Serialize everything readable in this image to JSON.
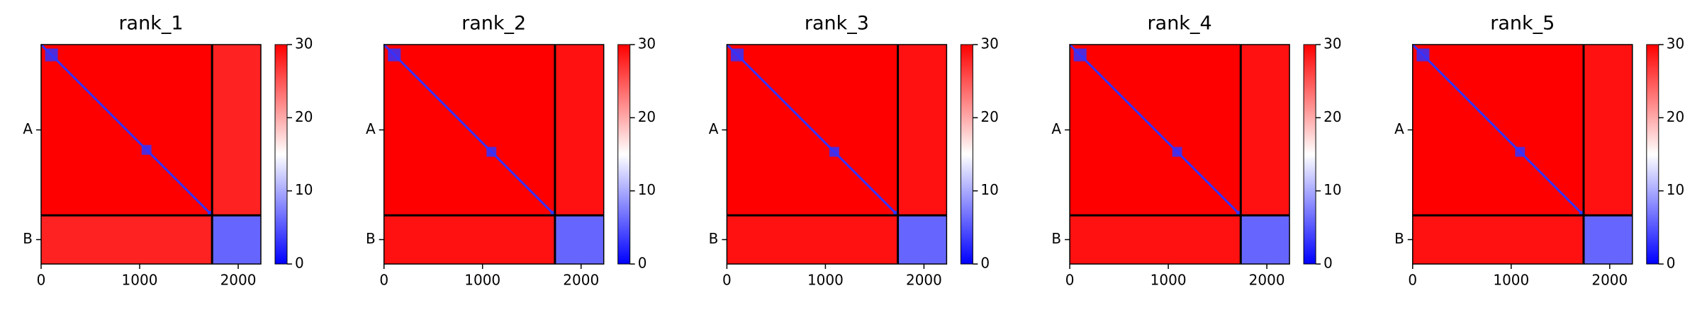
{
  "chart_data": [
    {
      "type": "heatmap",
      "title": "rank_1",
      "xlim": [
        0,
        2230
      ],
      "ylim": [
        2230,
        0
      ],
      "xticks": [
        0,
        1000,
        2000
      ],
      "yticks": [
        {
          "value": 867,
          "label": "A"
        },
        {
          "value": 1982,
          "label": "B"
        }
      ],
      "boundary": 1735,
      "block_values": [
        [
          30,
          28
        ],
        [
          28,
          6
        ]
      ],
      "diagonal_value": 3,
      "clusters": [
        [
          40,
          170
        ],
        [
          1020,
          1120
        ],
        [
          1690,
          1735
        ]
      ],
      "clim": [
        0,
        30
      ],
      "cticks": [
        0,
        10,
        20,
        30
      ]
    },
    {
      "type": "heatmap",
      "title": "rank_2",
      "xlim": [
        0,
        2230
      ],
      "ylim": [
        2230,
        0
      ],
      "xticks": [
        0,
        1000,
        2000
      ],
      "yticks": [
        {
          "value": 867,
          "label": "A"
        },
        {
          "value": 1982,
          "label": "B"
        }
      ],
      "boundary": 1735,
      "block_values": [
        [
          30,
          29
        ],
        [
          29,
          6
        ]
      ],
      "diagonal_value": 3,
      "clusters": [
        [
          40,
          170
        ],
        [
          1040,
          1140
        ],
        [
          1690,
          1735
        ]
      ],
      "clim": [
        0,
        30
      ],
      "cticks": [
        0,
        10,
        20,
        30
      ]
    },
    {
      "type": "heatmap",
      "title": "rank_3",
      "xlim": [
        0,
        2230
      ],
      "ylim": [
        2230,
        0
      ],
      "xticks": [
        0,
        1000,
        2000
      ],
      "yticks": [
        {
          "value": 867,
          "label": "A"
        },
        {
          "value": 1982,
          "label": "B"
        }
      ],
      "boundary": 1735,
      "block_values": [
        [
          30,
          29
        ],
        [
          29,
          6
        ]
      ],
      "diagonal_value": 3,
      "clusters": [
        [
          40,
          170
        ],
        [
          1040,
          1140
        ],
        [
          1690,
          1735
        ]
      ],
      "clim": [
        0,
        30
      ],
      "cticks": [
        0,
        10,
        20,
        30
      ]
    },
    {
      "type": "heatmap",
      "title": "rank_4",
      "xlim": [
        0,
        2230
      ],
      "ylim": [
        2230,
        0
      ],
      "xticks": [
        0,
        1000,
        2000
      ],
      "yticks": [
        {
          "value": 867,
          "label": "A"
        },
        {
          "value": 1982,
          "label": "B"
        }
      ],
      "boundary": 1735,
      "block_values": [
        [
          30,
          29
        ],
        [
          29,
          6
        ]
      ],
      "diagonal_value": 3,
      "clusters": [
        [
          40,
          170
        ],
        [
          1040,
          1140
        ],
        [
          1690,
          1735
        ]
      ],
      "clim": [
        0,
        30
      ],
      "cticks": [
        0,
        10,
        20,
        30
      ]
    },
    {
      "type": "heatmap",
      "title": "rank_5",
      "xlim": [
        0,
        2230
      ],
      "ylim": [
        2230,
        0
      ],
      "xticks": [
        0,
        1000,
        2000
      ],
      "yticks": [
        {
          "value": 867,
          "label": "A"
        },
        {
          "value": 1982,
          "label": "B"
        }
      ],
      "boundary": 1735,
      "block_values": [
        [
          30,
          29
        ],
        [
          29,
          6
        ]
      ],
      "diagonal_value": 3,
      "clusters": [
        [
          40,
          170
        ],
        [
          1040,
          1140
        ],
        [
          1690,
          1735
        ]
      ],
      "clim": [
        0,
        30
      ],
      "cticks": [
        0,
        10,
        20,
        30
      ]
    }
  ]
}
